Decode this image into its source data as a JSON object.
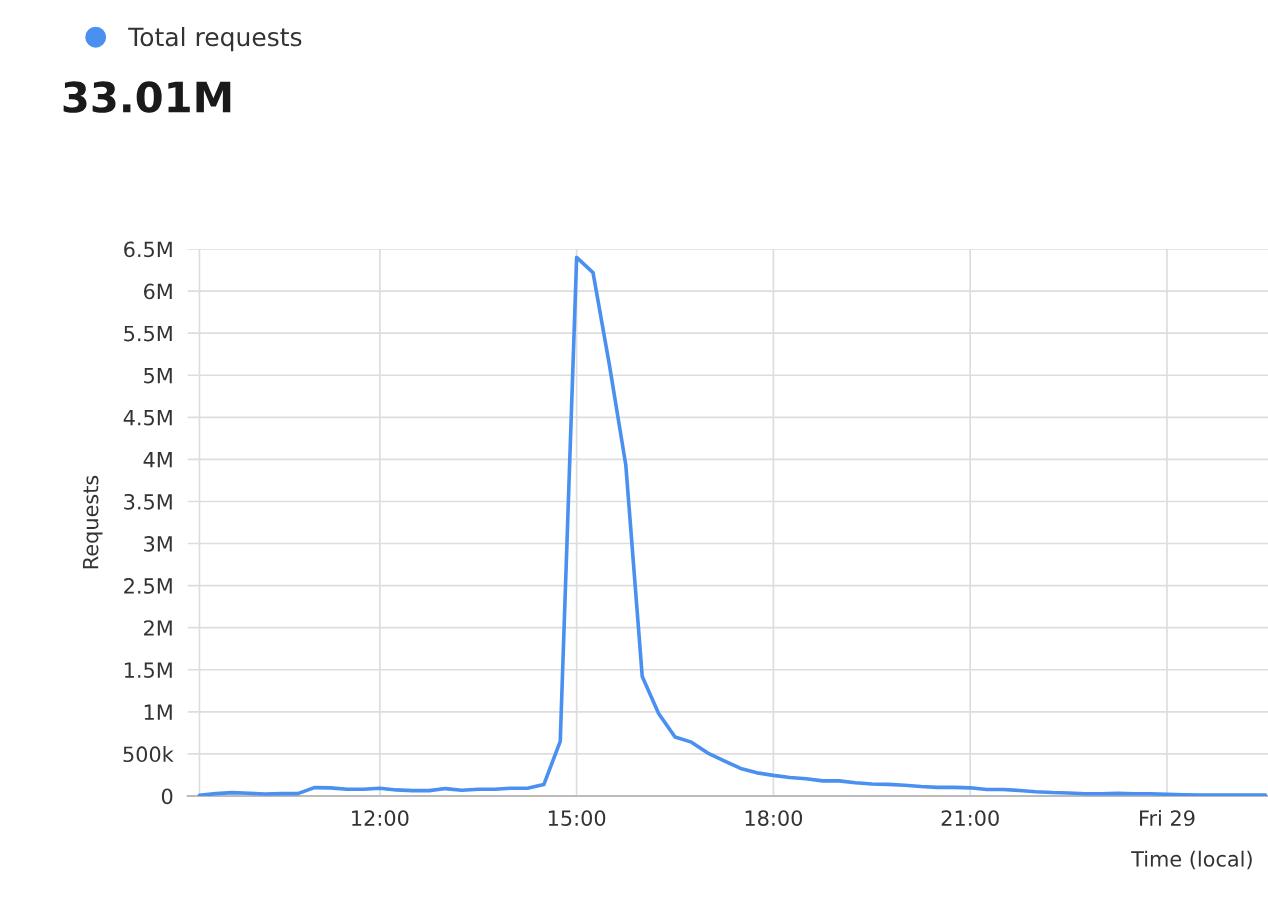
{
  "chart_data": {
    "type": "line",
    "title": "33.01M",
    "xlabel": "Time (local)",
    "ylabel": "Requests",
    "legend": "top left",
    "grid": true,
    "marker": "none",
    "line_style": "solid",
    "xlim": [
      9.07,
      25.54
    ],
    "ylim": [
      0,
      6500000
    ],
    "xticks": [
      {
        "value": 9.25,
        "label": null
      },
      {
        "value": 12,
        "label": "12:00"
      },
      {
        "value": 15,
        "label": "15:00"
      },
      {
        "value": 18,
        "label": "18:00"
      },
      {
        "value": 21,
        "label": "21:00"
      },
      {
        "value": 24,
        "label": "Fri 29"
      }
    ],
    "yticks": [
      0,
      {
        "value": 500000,
        "label": "500k"
      },
      {
        "value": 1000000,
        "label": "1M"
      },
      {
        "value": 1500000,
        "label": "1.5M"
      },
      {
        "value": 2000000,
        "label": "2M"
      },
      {
        "value": 2500000,
        "label": "2.5M"
      },
      {
        "value": 3000000,
        "label": "3M"
      },
      {
        "value": 3500000,
        "label": "3.5M"
      },
      {
        "value": 4000000,
        "label": "4M"
      },
      {
        "value": 4500000,
        "label": "4.5M"
      },
      {
        "value": 5000000,
        "label": "5M"
      },
      {
        "value": 5500000,
        "label": "5.5M"
      },
      {
        "value": 6000000,
        "label": "6M"
      },
      {
        "value": 6500000,
        "label": "6.5M"
      }
    ],
    "x": [
      9.25,
      9.5,
      9.75,
      10,
      10.25,
      10.5,
      10.75,
      11,
      11.25,
      11.5,
      11.75,
      12,
      12.25,
      12.5,
      12.75,
      13,
      13.25,
      13.5,
      13.75,
      14,
      14.25,
      14.5,
      14.75,
      15,
      15.25,
      15.5,
      15.75,
      16,
      16.25,
      16.5,
      16.75,
      17,
      17.25,
      17.5,
      17.75,
      18,
      18.25,
      18.5,
      18.75,
      19,
      19.25,
      19.5,
      19.75,
      20,
      20.25,
      20.5,
      20.75,
      21,
      21.25,
      21.5,
      21.75,
      22,
      22.25,
      22.5,
      22.75,
      23,
      23.25,
      23.5,
      23.75,
      24,
      24.25,
      24.5,
      24.75,
      25,
      25.25,
      25.5
    ],
    "series": [
      {
        "name": "Total requests",
        "color": "#4a90f0",
        "values": [
          8000,
          28000,
          40000,
          32000,
          24000,
          28000,
          28000,
          100000,
          96000,
          80000,
          80000,
          92000,
          72000,
          64000,
          64000,
          88000,
          68000,
          80000,
          80000,
          92000,
          92000,
          136000,
          650000,
          6400000,
          6220000,
          5120000,
          3930000,
          1420000,
          980000,
          700000,
          640000,
          510000,
          418000,
          327000,
          275000,
          245000,
          220000,
          204000,
          180000,
          180000,
          158000,
          143000,
          138000,
          128000,
          112000,
          102000,
          102000,
          97000,
          77000,
          77000,
          66000,
          51000,
          41000,
          36000,
          26000,
          26000,
          31000,
          26000,
          26000,
          20000,
          15000,
          10000,
          10000,
          10000,
          10000,
          10000
        ]
      }
    ]
  }
}
